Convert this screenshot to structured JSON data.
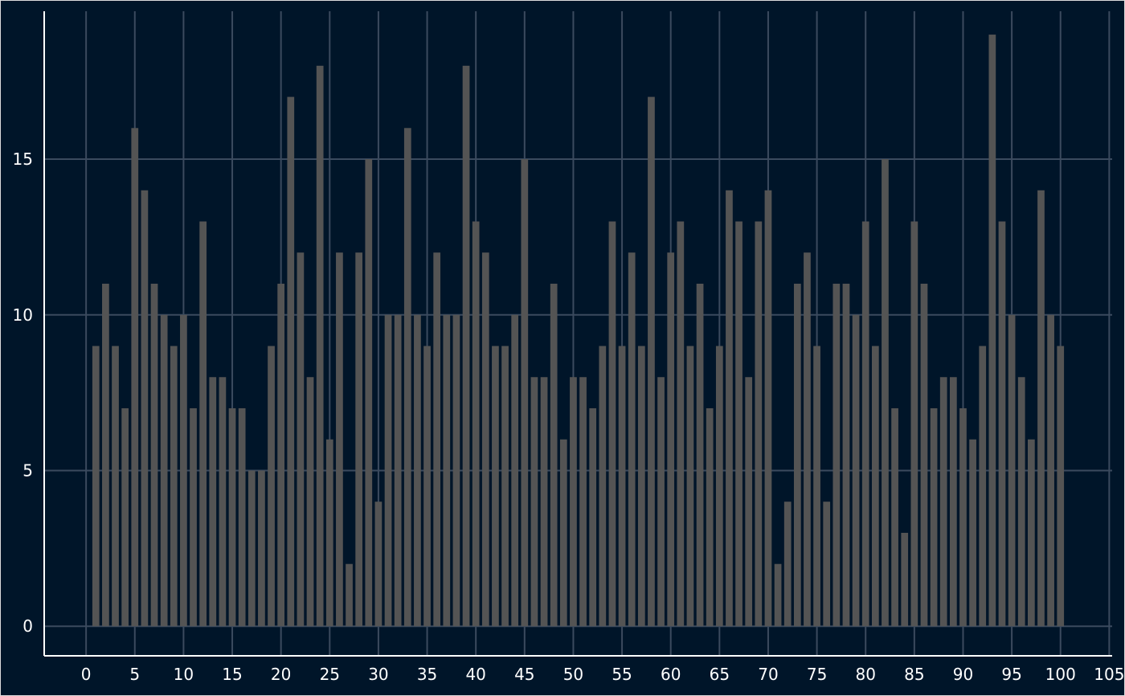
{
  "chart_data": {
    "type": "bar",
    "title": "",
    "xlabel": "",
    "ylabel": "",
    "x": [
      1,
      2,
      3,
      4,
      5,
      6,
      7,
      8,
      9,
      10,
      11,
      12,
      13,
      14,
      15,
      16,
      17,
      18,
      19,
      20,
      21,
      22,
      23,
      24,
      25,
      26,
      27,
      28,
      29,
      30,
      31,
      32,
      33,
      34,
      35,
      36,
      37,
      38,
      39,
      40,
      41,
      42,
      43,
      44,
      45,
      46,
      47,
      48,
      49,
      50,
      51,
      52,
      53,
      54,
      55,
      56,
      57,
      58,
      59,
      60,
      61,
      62,
      63,
      64,
      65,
      66,
      67,
      68,
      69,
      70,
      71,
      72,
      73,
      74,
      75,
      76,
      77,
      78,
      79,
      80,
      81,
      82,
      83,
      84,
      85,
      86,
      87,
      88,
      89,
      90,
      91,
      92,
      93,
      94,
      95,
      96,
      97,
      98,
      99,
      100
    ],
    "values": [
      9,
      11,
      9,
      7,
      16,
      14,
      11,
      10,
      9,
      10,
      7,
      13,
      8,
      8,
      7,
      7,
      5,
      5,
      9,
      11,
      17,
      12,
      8,
      18,
      6,
      12,
      2,
      12,
      15,
      4,
      10,
      10,
      16,
      10,
      9,
      12,
      10,
      10,
      18,
      13,
      12,
      9,
      9,
      10,
      15,
      8,
      8,
      11,
      6,
      8,
      8,
      7,
      9,
      13,
      9,
      12,
      9,
      17,
      8,
      12,
      13,
      9,
      11,
      7,
      9,
      14,
      13,
      8,
      13,
      14,
      2,
      4,
      11,
      12,
      9,
      4,
      11,
      11,
      10,
      13,
      9,
      15,
      7,
      3,
      13,
      11,
      7,
      8,
      8,
      7,
      6,
      9,
      19,
      13,
      10,
      8,
      6,
      14,
      10,
      9
    ],
    "xlim": [
      -4.3,
      105.3
    ],
    "ylim": [
      -0.95,
      19.75
    ],
    "x_ticks": [
      0,
      5,
      10,
      15,
      20,
      25,
      30,
      35,
      40,
      45,
      50,
      55,
      60,
      65,
      70,
      75,
      80,
      85,
      90,
      95,
      100,
      105
    ],
    "x_tick_labels": [
      "0",
      "5",
      "10",
      "15",
      "20",
      "25",
      "30",
      "35",
      "40",
      "45",
      "50",
      "55",
      "60",
      "65",
      "70",
      "75",
      "80",
      "85",
      "90",
      "95",
      "100",
      "105"
    ],
    "y_ticks": [
      0,
      5,
      10,
      15
    ],
    "y_tick_labels": [
      "0",
      "5",
      "10",
      "15"
    ],
    "grid": true,
    "legend": "none",
    "colors": {
      "background": "#001529",
      "bar": "#545454",
      "grid": "#3b4a5e",
      "axis": "#ffffff",
      "text": "#ffffff",
      "border": "#dcdcdc"
    }
  }
}
